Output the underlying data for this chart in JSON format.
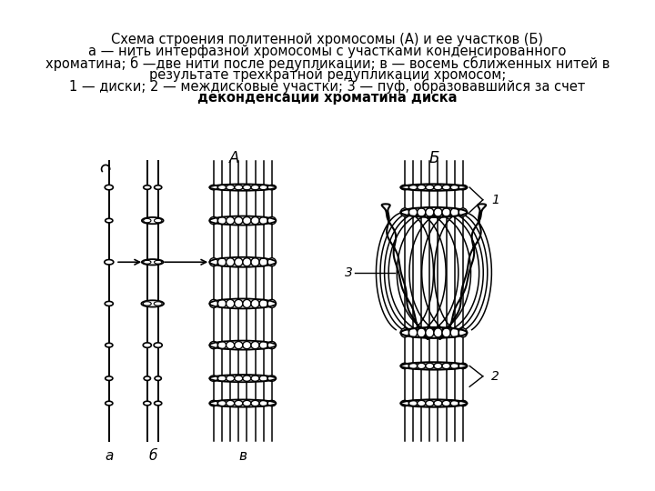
{
  "title_line1": "Схема строения политенной хромосомы (А) и ее участков (Б)",
  "title_line2": "а — нить интерфазной хромосомы с участками конденсированного",
  "title_line3": "хроматина; б —две нити после редупликации; в — восемь сближенных нитей в",
  "title_line4": "результате трехкратной редупликации хромосом;",
  "title_line5": "1 — диски; 2 — междисковые участки; 3 — пуф, образовавшийся за счет",
  "title_line6": "деконденсации хроматина диска",
  "bg_color": "#ffffff",
  "line_color": "#000000",
  "label_A": "А",
  "label_B": "Б",
  "label_a": "а",
  "label_b": "б",
  "label_v": "в",
  "label_1": "1",
  "label_2": "2",
  "label_3": "3"
}
